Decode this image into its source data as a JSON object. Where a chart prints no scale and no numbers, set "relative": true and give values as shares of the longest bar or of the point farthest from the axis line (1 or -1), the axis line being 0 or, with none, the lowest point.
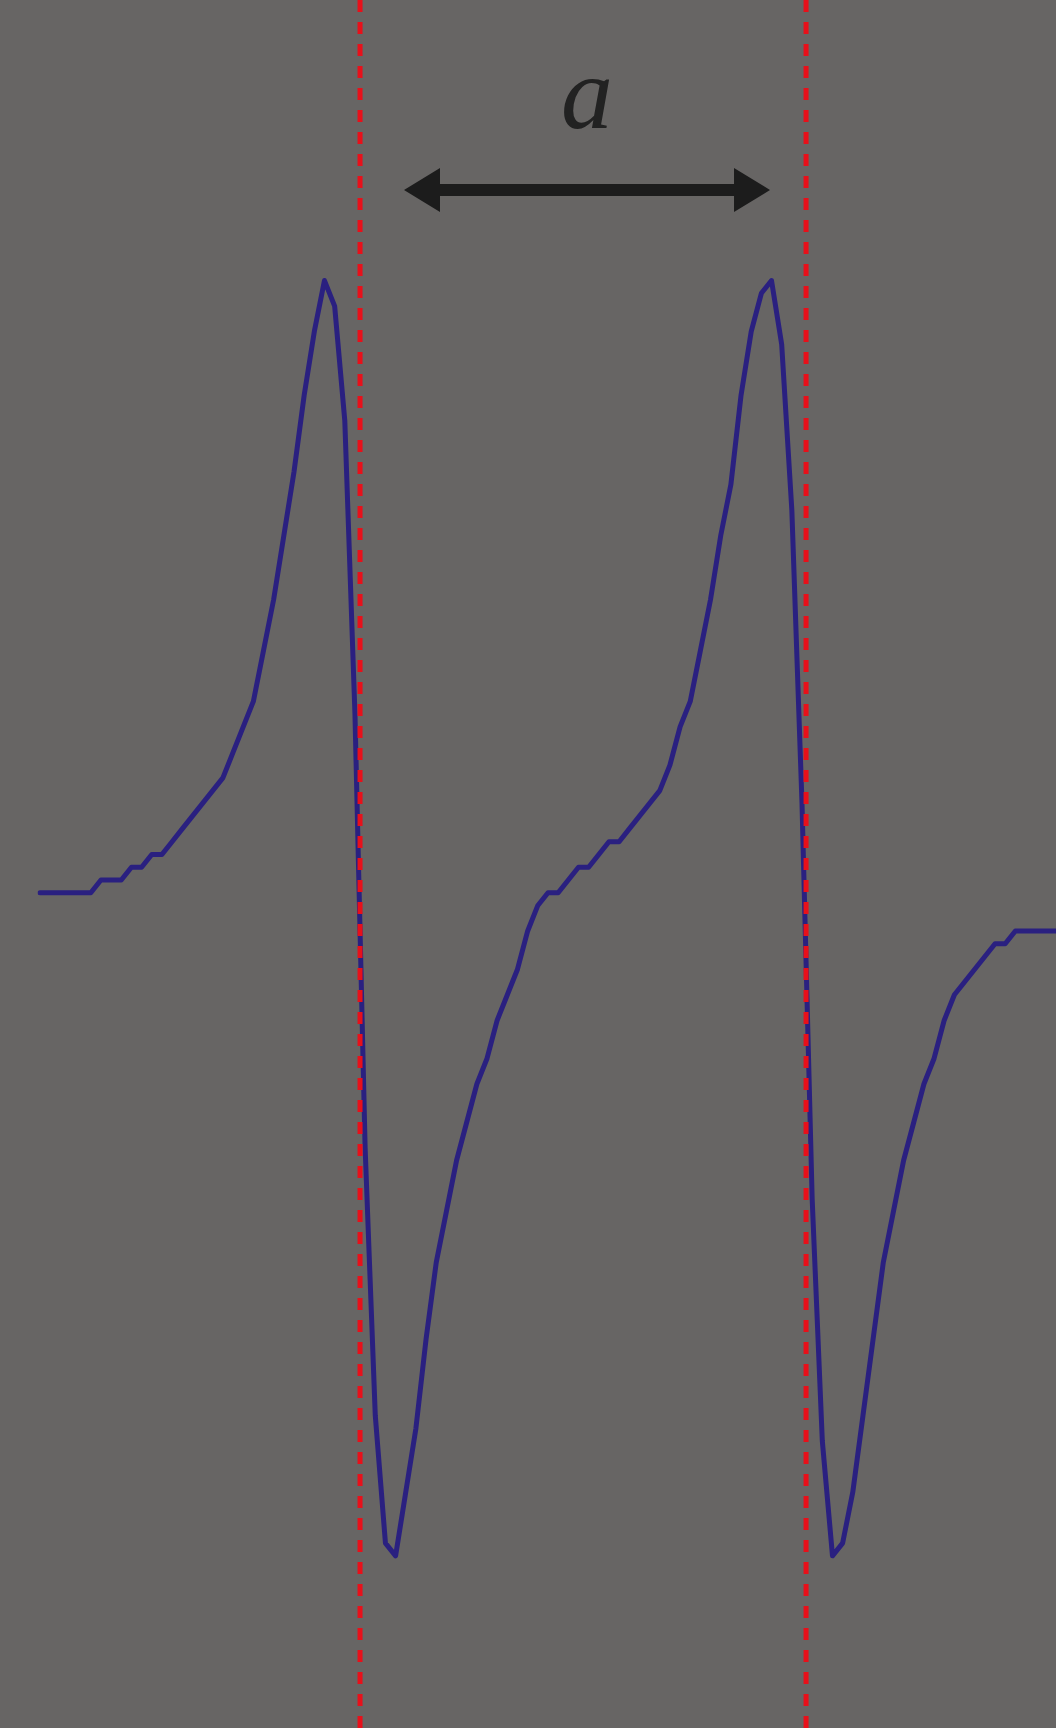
{
  "chart_data": {
    "type": "line",
    "relative": true,
    "categories": [
      null,
      null,
      null,
      null,
      null,
      null,
      null,
      null,
      null,
      null,
      null,
      null,
      null,
      null,
      null,
      null,
      null,
      null,
      null,
      null,
      null,
      null,
      null,
      null,
      null,
      null,
      null,
      null,
      null,
      null,
      null,
      null,
      null,
      null,
      null,
      null,
      null,
      null,
      null,
      null,
      null,
      null,
      null,
      null,
      null,
      null,
      null,
      null,
      null,
      null,
      null,
      null,
      null,
      null,
      null,
      null,
      null,
      null,
      null,
      null,
      null,
      null,
      null,
      null,
      null,
      null,
      null,
      null,
      null,
      null,
      null,
      null,
      null,
      null,
      null,
      null,
      null,
      null,
      null,
      null,
      null,
      null,
      null,
      null,
      null,
      null,
      null,
      null,
      null,
      null,
      null,
      null,
      null,
      null,
      null,
      null,
      null,
      null,
      null,
      null,
      null
    ],
    "series": [
      {
        "color": "#2a2080",
        "values": [
          0.52,
          0.52,
          0.52,
          0.52,
          0.52,
          0.52,
          0.53,
          0.53,
          0.53,
          0.54,
          0.54,
          0.55,
          0.55,
          0.56,
          0.57,
          0.58,
          0.59,
          0.6,
          0.61,
          0.63,
          0.65,
          0.67,
          0.71,
          0.75,
          0.8,
          0.85,
          0.91,
          0.96,
          1,
          0.98,
          0.89,
          0.66,
          0.32,
          0.11,
          0.01,
          0,
          0.05,
          0.1,
          0.17,
          0.23,
          0.27,
          0.31,
          0.34,
          0.37,
          0.39,
          0.42,
          0.44,
          0.46,
          0.49,
          0.51,
          0.52,
          0.52,
          0.53,
          0.54,
          0.54,
          0.55,
          0.56,
          0.56,
          0.57,
          0.58,
          0.59,
          0.6,
          0.62,
          0.65,
          0.67,
          0.71,
          0.75,
          0.8,
          0.84,
          0.91,
          0.96,
          0.99,
          1,
          0.95,
          0.82,
          0.59,
          0.28,
          0.09,
          0,
          0.01,
          0.05,
          0.11,
          0.17,
          0.23,
          0.27,
          0.31,
          0.34,
          0.37,
          0.39,
          0.42,
          0.44,
          0.45,
          0.46,
          0.47,
          0.48,
          0.48,
          0.49,
          0.49,
          0.49,
          0.49,
          0.49
        ]
      }
    ],
    "annotations": [
      "a"
    ]
  }
}
